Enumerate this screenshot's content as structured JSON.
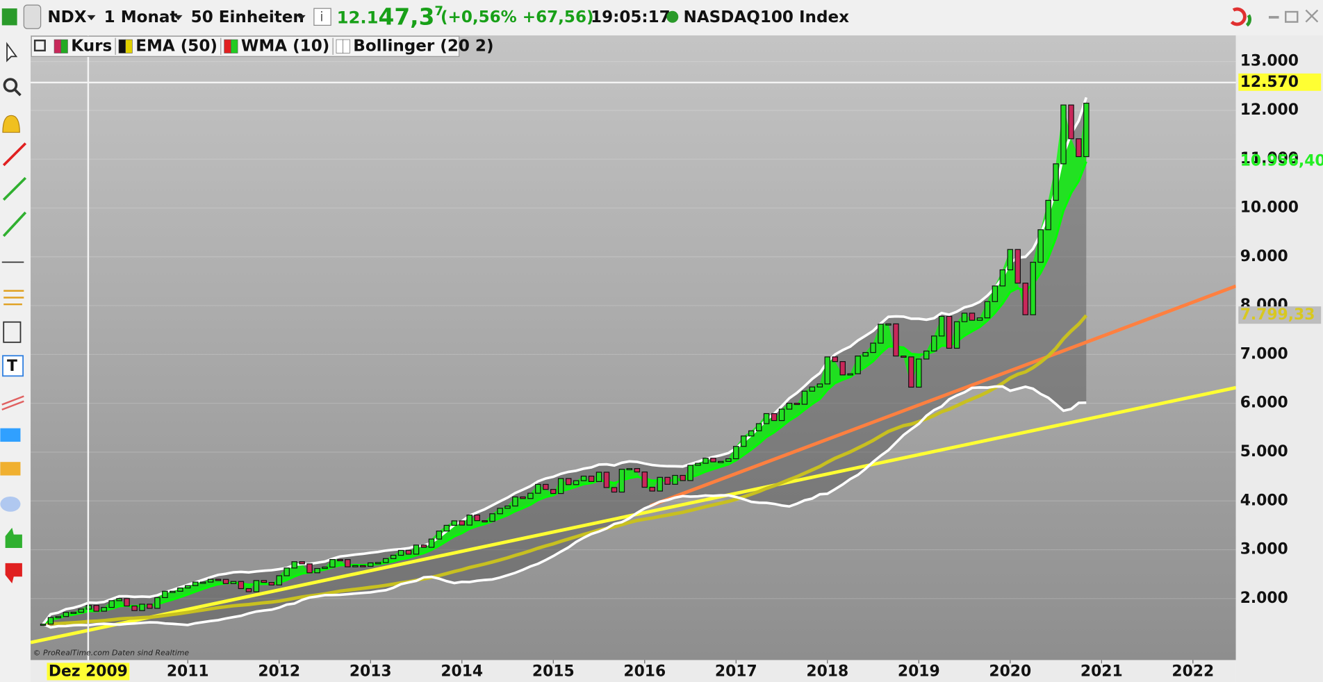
{
  "toolbar": {
    "symbol": "NDX",
    "period": "1 Monat",
    "units": "50 Einheiten",
    "price_prefix": "12.1",
    "price_main": "47,3",
    "price_sup": "7",
    "change": "(+0,56% +67,56)",
    "time": "19:05:17",
    "instrument": "NASDAQ100 Index"
  },
  "legend": [
    {
      "name": "Kurs",
      "color": "#c8285a",
      "color2": "#22aa22"
    },
    {
      "name": "EMA (50)",
      "color": "#111111",
      "color2": "#e0d000"
    },
    {
      "name": "WMA (10)",
      "color": "#e02020",
      "color2": "#22cc22"
    },
    {
      "name": "Bollinger (20 2)",
      "color": "#ffffff",
      "color2": "#ffffff"
    }
  ],
  "watermark": "© ProRealTime.com  Daten sind Realtime",
  "chart_data": {
    "type": "candlestick",
    "x": [
      2009.417,
      2009.5,
      2009.583,
      2009.667,
      2009.75,
      2009.833,
      2009.917,
      2010,
      2010.083,
      2010.167,
      2010.25,
      2010.333,
      2010.417,
      2010.5,
      2010.583,
      2010.667,
      2010.75,
      2010.833,
      2010.917,
      2011,
      2011.083,
      2011.167,
      2011.25,
      2011.333,
      2011.417,
      2011.5,
      2011.583,
      2011.667,
      2011.75,
      2011.833,
      2011.917,
      2012,
      2012.083,
      2012.167,
      2012.25,
      2012.333,
      2012.417,
      2012.5,
      2012.583,
      2012.667,
      2012.75,
      2012.833,
      2012.917,
      2013,
      2013.083,
      2013.167,
      2013.25,
      2013.333,
      2013.417,
      2013.5,
      2013.583,
      2013.667,
      2013.75,
      2013.833,
      2013.917,
      2014,
      2014.083,
      2014.167,
      2014.25,
      2014.333,
      2014.417,
      2014.5,
      2014.583,
      2014.667,
      2014.75,
      2014.833,
      2014.917,
      2015,
      2015.083,
      2015.167,
      2015.25,
      2015.333,
      2015.417,
      2015.5,
      2015.583,
      2015.667,
      2015.75,
      2015.833,
      2015.917,
      2016,
      2016.083,
      2016.167,
      2016.25,
      2016.333,
      2016.417,
      2016.5,
      2016.583,
      2016.667,
      2016.75,
      2016.833,
      2016.917,
      2017,
      2017.083,
      2017.167,
      2017.25,
      2017.333,
      2017.417,
      2017.5,
      2017.583,
      2017.667,
      2017.75,
      2017.833,
      2017.917,
      2018,
      2018.083,
      2018.167,
      2018.25,
      2018.333,
      2018.417,
      2018.5,
      2018.583,
      2018.667,
      2018.75,
      2018.833,
      2018.917,
      2019,
      2019.083,
      2019.167,
      2019.25,
      2019.333,
      2019.417,
      2019.5,
      2019.583,
      2019.667,
      2019.75,
      2019.833,
      2019.917,
      2020,
      2020.083,
      2020.167,
      2020.25,
      2020.333,
      2020.417,
      2020.5,
      2020.583,
      2020.667,
      2020.75,
      2020.833
    ],
    "close": [
      1477,
      1612,
      1632,
      1718,
      1720,
      1784,
      1860,
      1741,
      1819,
      1957,
      2000,
      1848,
      1754,
      1885,
      1800,
      2020,
      2150,
      2150,
      2217,
      2265,
      2338,
      2338,
      2395,
      2393,
      2307,
      2350,
      2204,
      2140,
      2370,
      2330,
      2278,
      2468,
      2626,
      2755,
      2711,
      2528,
      2616,
      2645,
      2800,
      2799,
      2650,
      2677,
      2660,
      2731,
      2738,
      2819,
      2887,
      2987,
      2910,
      3096,
      3050,
      3219,
      3383,
      3500,
      3592,
      3505,
      3711,
      3596,
      3582,
      3737,
      3849,
      3896,
      4082,
      4049,
      4158,
      4339,
      4236,
      4152,
      4459,
      4334,
      4415,
      4508,
      4397,
      4588,
      4274,
      4181,
      4648,
      4664,
      4593,
      4280,
      4202,
      4483,
      4341,
      4523,
      4417,
      4730,
      4771,
      4875,
      4800,
      4810,
      4864,
      5117,
      5330,
      5436,
      5583,
      5789,
      5646,
      5880,
      6000,
      5980,
      6248,
      6334,
      6396,
      6950,
      6854,
      6581,
      6605,
      6968,
      7040,
      7232,
      7621,
      7627,
      6968,
      6950,
      6330,
      6906,
      7070,
      7378,
      7781,
      7127,
      7671,
      7846,
      7700,
      7749,
      8083,
      8403,
      8733,
      9150,
      8461,
      7813,
      8889,
      9555,
      10157,
      10905,
      12110,
      11418,
      11052,
      12147
    ],
    "up_color": "#22dd22",
    "down_color": "#c8285a",
    "ema_color": "#c8c020",
    "wma_color": "#00ff00",
    "bollinger_color": "#ffffff",
    "trend_lines": [
      {
        "color": "#ffff33",
        "x": [
          2009.28,
          2022.47
        ],
        "values": [
          1100,
          6320
        ]
      },
      {
        "color": "#ff8040",
        "x": [
          2016.06,
          2022.47
        ],
        "values": [
          3900,
          8400
        ]
      }
    ],
    "xlim": [
      2009.28,
      2022.47
    ],
    "xticks": [
      2011,
      2012,
      2013,
      2014,
      2015,
      2016,
      2017,
      2018,
      2019,
      2020,
      2021,
      2022
    ],
    "ylim": [
      740,
      13535
    ],
    "yticks": [
      {
        "value": 2000,
        "label": "2.000"
      },
      {
        "value": 3000,
        "label": "3.000"
      },
      {
        "value": 4000,
        "label": "4.000"
      },
      {
        "value": 5000,
        "label": "5.000"
      },
      {
        "value": 6000,
        "label": "6.000"
      },
      {
        "value": 7000,
        "label": "7.000"
      },
      {
        "value": 8000,
        "label": "8.000"
      },
      {
        "value": 9000,
        "label": "9.000"
      },
      {
        "value": 10000,
        "label": "10.000"
      },
      {
        "value": 11000,
        "label": "11.000"
      },
      {
        "value": 12000,
        "label": "12.000"
      },
      {
        "value": 13000,
        "label": "13.000"
      }
    ],
    "grid": true,
    "crosshair": {
      "x": 2009.91,
      "label": "Dez 2009"
    },
    "markers": [
      {
        "value": 12570,
        "label": "12.570",
        "color": "#111111",
        "bg": "#ffff33",
        "line": true
      },
      {
        "value": 10956.4,
        "label": "10.956,40",
        "color": "#22ee22",
        "bg": "none",
        "line": false
      },
      {
        "value": 7799.33,
        "label": "7.799,33",
        "color": "#d8c820",
        "bg": "#bdbdbd",
        "line": false
      }
    ]
  }
}
